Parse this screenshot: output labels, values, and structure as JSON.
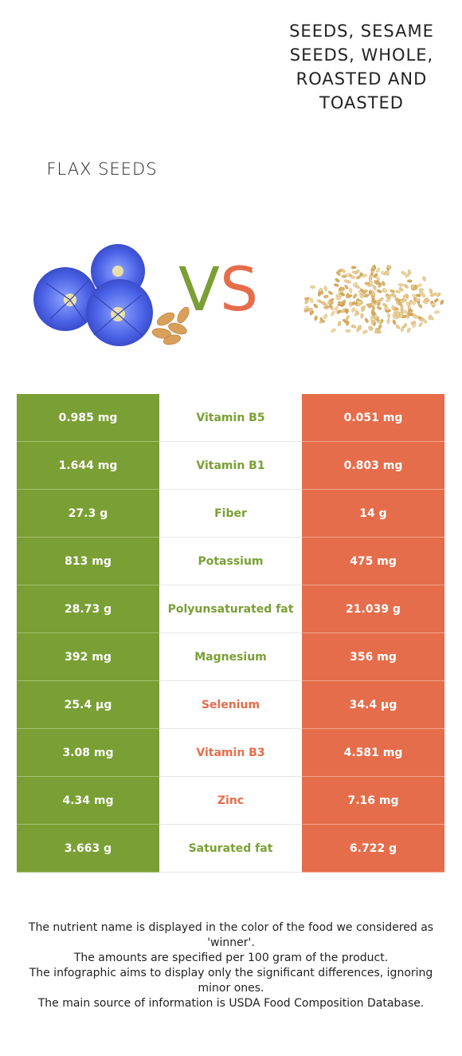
{
  "food_left": {
    "name": "Flax seeds",
    "image": "flax-flowers-and-seeds-image",
    "color": "#7a9f34"
  },
  "food_right": {
    "name": "Seeds, sesame seeds, whole, roasted and toasted",
    "image": "sesame-seeds-pile-image",
    "color": "#e56d4b"
  },
  "vs": {
    "v": "V",
    "s": "S"
  },
  "rows": [
    {
      "left": "0.985 mg",
      "nutrient": "Vitamin B5",
      "right": "0.051 mg",
      "winner": "left"
    },
    {
      "left": "1.644 mg",
      "nutrient": "Vitamin B1",
      "right": "0.803 mg",
      "winner": "left"
    },
    {
      "left": "27.3 g",
      "nutrient": "Fiber",
      "right": "14 g",
      "winner": "left"
    },
    {
      "left": "813 mg",
      "nutrient": "Potassium",
      "right": "475 mg",
      "winner": "left"
    },
    {
      "left": "28.73 g",
      "nutrient": "Polyunsaturated fat",
      "right": "21.039 g",
      "winner": "left"
    },
    {
      "left": "392 mg",
      "nutrient": "Magnesium",
      "right": "356 mg",
      "winner": "left"
    },
    {
      "left": "25.4 µg",
      "nutrient": "Selenium",
      "right": "34.4 µg",
      "winner": "right"
    },
    {
      "left": "3.08 mg",
      "nutrient": "Vitamin B3",
      "right": "4.581 mg",
      "winner": "right"
    },
    {
      "left": "4.34 mg",
      "nutrient": "Zinc",
      "right": "7.16 mg",
      "winner": "right"
    },
    {
      "left": "3.663 g",
      "nutrient": "Saturated fat",
      "right": "6.722 g",
      "winner": "left"
    }
  ],
  "footer": {
    "line1": "The nutrient name is displayed in the color of the food we considered as 'winner'.",
    "line2": "The amounts are specified per 100 gram of the product.",
    "line3": "The infographic aims to display only the significant differences, ignoring minor ones.",
    "line4": "The main source of information is USDA Food Composition Database."
  }
}
